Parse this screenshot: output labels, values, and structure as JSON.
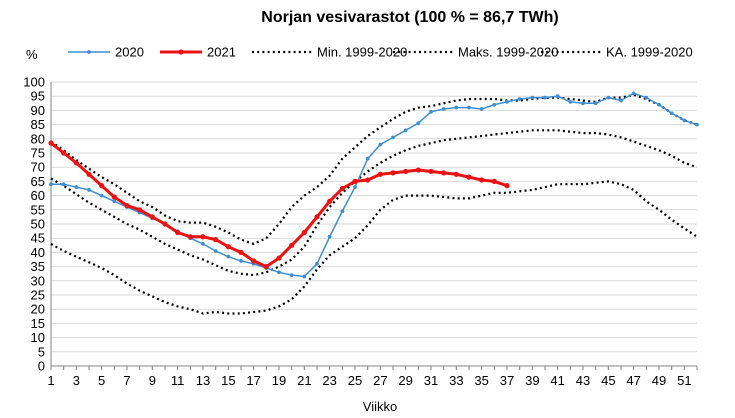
{
  "chart_data": {
    "type": "line",
    "title": "Norjan vesivarastot (100 % = 86,7 TWh)",
    "xlabel": "Viikko",
    "ylabel": "%",
    "xlim": [
      1,
      52
    ],
    "ylim": [
      0,
      100
    ],
    "x_ticks": [
      1,
      3,
      5,
      7,
      9,
      11,
      13,
      15,
      17,
      19,
      21,
      23,
      25,
      27,
      29,
      31,
      33,
      35,
      37,
      39,
      41,
      43,
      45,
      47,
      49,
      51
    ],
    "y_ticks": [
      0,
      5,
      10,
      15,
      20,
      25,
      30,
      35,
      40,
      45,
      50,
      55,
      60,
      65,
      70,
      75,
      80,
      85,
      90,
      95,
      100
    ],
    "grid": true,
    "legend_position": "top",
    "series": [
      {
        "name": "2020",
        "color": "#3d8fd1",
        "style": "solid-marker",
        "x": [
          1,
          2,
          3,
          4,
          5,
          6,
          7,
          8,
          9,
          10,
          11,
          12,
          13,
          14,
          15,
          16,
          17,
          18,
          19,
          20,
          21,
          22,
          23,
          24,
          25,
          26,
          27,
          28,
          29,
          30,
          31,
          32,
          33,
          34,
          35,
          36,
          37,
          38,
          39,
          40,
          41,
          42,
          43,
          44,
          45,
          46,
          47,
          48,
          49,
          50,
          51,
          52
        ],
        "values": [
          64,
          64,
          63,
          62,
          60,
          58,
          56,
          54,
          52,
          50,
          47.5,
          45,
          43,
          40.5,
          38.5,
          37,
          36,
          34.5,
          33,
          32,
          31.5,
          36,
          45.5,
          54.5,
          63,
          73,
          78,
          80.5,
          83,
          85.5,
          89.5,
          90.5,
          91,
          91,
          90.5,
          92,
          93,
          94,
          94.5,
          94.5,
          95,
          93,
          92.5,
          92.5,
          94.5,
          93.5,
          96,
          94.5,
          92,
          89,
          86.5,
          85
        ]
      },
      {
        "name": "2021",
        "color": "#ee1111",
        "style": "bold-marker",
        "x": [
          1,
          2,
          3,
          4,
          5,
          6,
          7,
          8,
          9,
          10,
          11,
          12,
          13,
          14,
          15,
          16,
          17,
          18,
          19,
          20,
          21,
          22,
          23,
          24,
          25,
          26,
          27,
          28,
          29,
          30,
          31,
          32,
          33,
          34,
          35,
          36,
          37
        ],
        "values": [
          78.5,
          75,
          71.5,
          67.5,
          63.5,
          59.5,
          56.5,
          55,
          52.5,
          50,
          47,
          45.5,
          45.5,
          44.5,
          42,
          40,
          37,
          35,
          38,
          42.5,
          47,
          52.5,
          58,
          62.5,
          65,
          65.5,
          67.5,
          68,
          68.5,
          69,
          68.5,
          68,
          67.5,
          66.5,
          65.5,
          65,
          63.5
        ]
      },
      {
        "name": "Min. 1999-2020",
        "color": "#000000",
        "style": "dotted",
        "x": [
          1,
          2,
          3,
          4,
          5,
          6,
          7,
          8,
          9,
          10,
          11,
          12,
          13,
          14,
          15,
          16,
          17,
          18,
          19,
          20,
          21,
          22,
          23,
          24,
          25,
          26,
          27,
          28,
          29,
          30,
          31,
          32,
          33,
          34,
          35,
          36,
          37,
          38,
          39,
          40,
          41,
          42,
          43,
          44,
          45,
          46,
          47,
          48,
          49,
          50,
          51,
          52
        ],
        "values": [
          43,
          40.5,
          38.5,
          36.5,
          34.5,
          32,
          29,
          26.5,
          24.5,
          22.5,
          21,
          20,
          18.5,
          19,
          18.5,
          18.5,
          19,
          19.5,
          21,
          23.5,
          28,
          34,
          39,
          42,
          45,
          49.5,
          55,
          58.5,
          60,
          60,
          60,
          59.5,
          59,
          59,
          60,
          61,
          61,
          61.5,
          62,
          63,
          64,
          64,
          64,
          64.5,
          65,
          64,
          62,
          58,
          55,
          51.5,
          48.5,
          45.5
        ]
      },
      {
        "name": "Maks. 1999-2020",
        "color": "#000000",
        "style": "dotted",
        "x": [
          1,
          2,
          3,
          4,
          5,
          6,
          7,
          8,
          9,
          10,
          11,
          12,
          13,
          14,
          15,
          16,
          17,
          18,
          19,
          20,
          21,
          22,
          23,
          24,
          25,
          26,
          27,
          28,
          29,
          30,
          31,
          32,
          33,
          34,
          35,
          36,
          37,
          38,
          39,
          40,
          41,
          42,
          43,
          44,
          45,
          46,
          47,
          48,
          49,
          50,
          51,
          52
        ],
        "values": [
          79,
          76,
          72.5,
          69.5,
          66.5,
          64,
          61,
          58,
          56,
          53,
          51,
          50.5,
          50.5,
          49,
          47,
          44.5,
          43,
          45,
          50,
          56,
          60,
          63,
          67,
          73,
          77,
          81,
          84,
          87,
          89.5,
          91,
          91.5,
          92.5,
          93.5,
          94,
          94,
          94,
          93.5,
          93.5,
          94,
          94.5,
          94.5,
          94,
          93.5,
          93,
          94.5,
          94.5,
          95.5,
          94,
          92,
          89,
          86.5,
          85
        ]
      },
      {
        "name": "KA. 1999-2020",
        "color": "#000000",
        "style": "dotted",
        "x": [
          1,
          2,
          3,
          4,
          5,
          6,
          7,
          8,
          9,
          10,
          11,
          12,
          13,
          14,
          15,
          16,
          17,
          18,
          19,
          20,
          21,
          22,
          23,
          24,
          25,
          26,
          27,
          28,
          29,
          30,
          31,
          32,
          33,
          34,
          35,
          36,
          37,
          38,
          39,
          40,
          41,
          42,
          43,
          44,
          45,
          46,
          47,
          48,
          49,
          50,
          51,
          52
        ],
        "values": [
          66,
          63.5,
          60.5,
          57.5,
          55,
          52.5,
          50,
          48,
          45.5,
          43,
          41,
          39,
          37.5,
          35.5,
          33.5,
          32.5,
          32,
          33,
          35,
          37.5,
          42,
          49.5,
          56,
          61,
          65,
          68.5,
          71.5,
          74,
          76,
          77.5,
          78.5,
          79.5,
          80,
          80.5,
          81,
          81.5,
          82,
          82.5,
          83,
          83,
          83,
          82.5,
          82,
          82,
          81.5,
          80.5,
          79,
          77.5,
          76,
          74,
          71.5,
          70
        ]
      }
    ]
  }
}
